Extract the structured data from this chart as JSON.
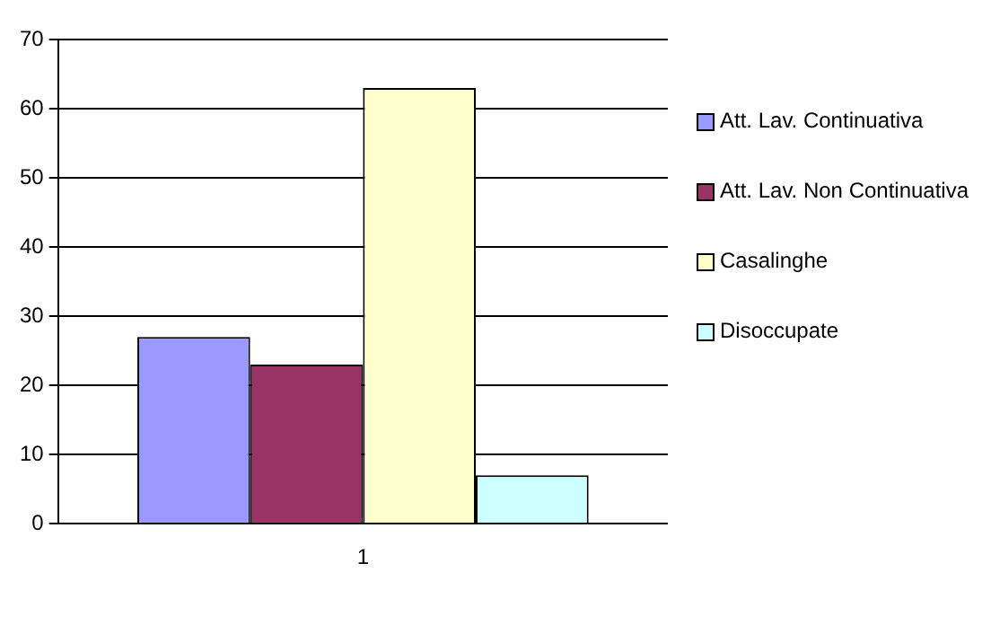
{
  "chart_data": {
    "type": "bar",
    "categories": [
      "1"
    ],
    "series": [
      {
        "name": "Att. Lav. Continuativa",
        "color": "#9999ff",
        "values": [
          27
        ]
      },
      {
        "name": "Att. Lav. Non Continuativa",
        "color": "#993366",
        "values": [
          23
        ]
      },
      {
        "name": "Casalinghe",
        "color": "#ffffcc",
        "values": [
          63
        ]
      },
      {
        "name": "Disoccupate",
        "color": "#ccffff",
        "values": [
          7
        ]
      }
    ],
    "ylim": [
      0,
      70
    ],
    "yticks": [
      0,
      10,
      20,
      30,
      40,
      50,
      60,
      70
    ],
    "grid": "y",
    "legend": "right"
  }
}
